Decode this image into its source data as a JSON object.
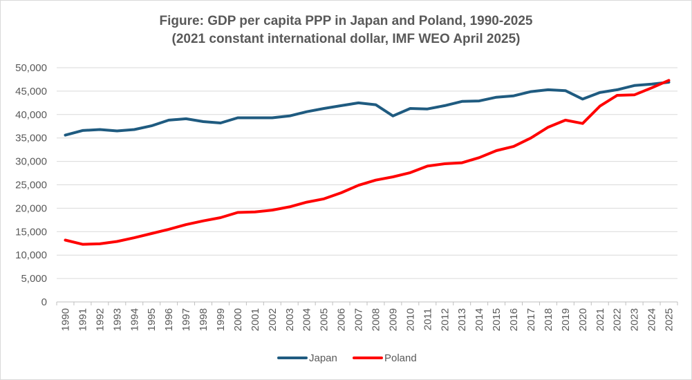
{
  "chart_data": {
    "type": "line",
    "title": "Figure: GDP per capita PPP in Japan and Poland, 1990-2025",
    "subtitle": "(2021 constant international dollar, IMF WEO April 2025)",
    "xlabel": "",
    "ylabel": "",
    "ylim": [
      0,
      50000
    ],
    "yticks": [
      0,
      5000,
      10000,
      15000,
      20000,
      25000,
      30000,
      35000,
      40000,
      45000,
      50000
    ],
    "ytick_labels": [
      "0",
      "5,000",
      "10,000",
      "15,000",
      "20,000",
      "25,000",
      "30,000",
      "35,000",
      "40,000",
      "45,000",
      "50,000"
    ],
    "grid": true,
    "legend_position": "bottom",
    "categories": [
      "1990",
      "1991",
      "1992",
      "1993",
      "1994",
      "1995",
      "1996",
      "1997",
      "1998",
      "1999",
      "2000",
      "2001",
      "2002",
      "2003",
      "2004",
      "2005",
      "2006",
      "2007",
      "2008",
      "2009",
      "2010",
      "2011",
      "2012",
      "2013",
      "2014",
      "2015",
      "2016",
      "2017",
      "2018",
      "2019",
      "2020",
      "2021",
      "2022",
      "2023",
      "2024",
      "2025"
    ],
    "series": [
      {
        "name": "Japan",
        "color": "#1f5b80",
        "values": [
          35600,
          36600,
          36800,
          36500,
          36800,
          37600,
          38800,
          39100,
          38500,
          38200,
          39300,
          39300,
          39300,
          39700,
          40600,
          41300,
          41900,
          42500,
          42100,
          39700,
          41300,
          41200,
          41900,
          42800,
          42900,
          43700,
          44000,
          44900,
          45300,
          45100,
          43300,
          44700,
          45300,
          46200,
          46500,
          46900
        ]
      },
      {
        "name": "Poland",
        "color": "#ff0000",
        "values": [
          13200,
          12300,
          12400,
          12900,
          13700,
          14600,
          15500,
          16500,
          17300,
          18000,
          19100,
          19200,
          19600,
          20300,
          21300,
          22000,
          23300,
          24900,
          26000,
          26700,
          27600,
          29000,
          29500,
          29700,
          30800,
          32300,
          33200,
          35000,
          37300,
          38800,
          38100,
          41800,
          44100,
          44200,
          45700,
          47300
        ]
      }
    ]
  }
}
